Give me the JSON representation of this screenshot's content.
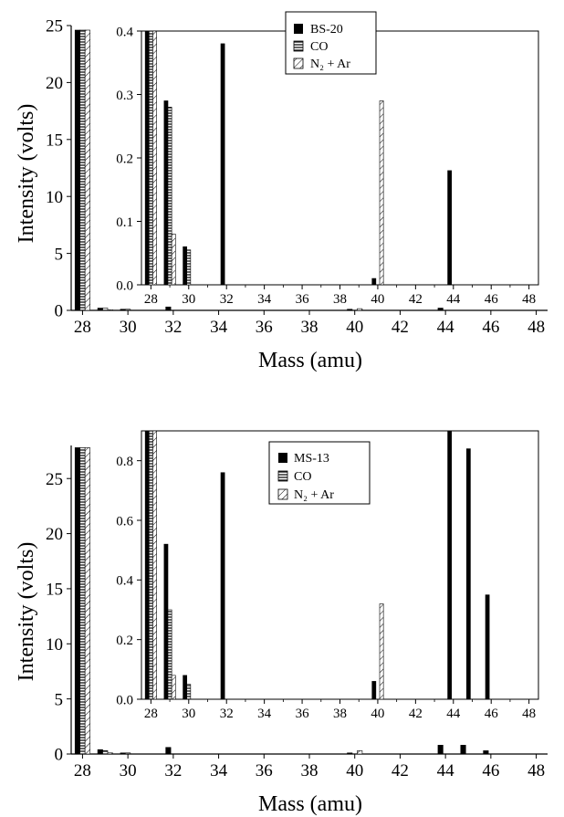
{
  "chart_data": [
    {
      "type": "bar",
      "xlabel": "Mass (amu)",
      "ylabel": "Intensity (volts)",
      "xlim": [
        27.5,
        48.5
      ],
      "ylim": [
        0,
        25
      ],
      "yticks": [
        0,
        5,
        10,
        15,
        20,
        25
      ],
      "xticks": [
        28,
        30,
        32,
        34,
        36,
        38,
        40,
        42,
        44,
        46,
        48
      ],
      "series": [
        {
          "name": "BS-20",
          "pattern": "solid",
          "x": [
            28,
            29,
            30,
            32,
            40,
            44
          ],
          "values": [
            24.6,
            0.2,
            0.1,
            0.3,
            0.1,
            0.2
          ]
        },
        {
          "name": "CO",
          "pattern": "horizontal-lines",
          "x": [
            28,
            29,
            30
          ],
          "values": [
            24.6,
            0.2,
            0.1
          ]
        },
        {
          "name": "N2 + Ar",
          "pattern": "diagonal-hatch",
          "x": [
            28,
            29,
            40
          ],
          "values": [
            24.6,
            0.05,
            0.15
          ]
        }
      ],
      "inset": {
        "xlim": [
          27.5,
          48.5
        ],
        "ylim": [
          0,
          0.4
        ],
        "yticks": [
          "0.0",
          "0.1",
          "0.2",
          "0.3",
          "0.4"
        ],
        "xticks": [
          28,
          30,
          32,
          34,
          36,
          38,
          40,
          42,
          44,
          46,
          48
        ],
        "legend": {
          "position": "top-center",
          "entries": [
            "BS-20",
            "CO",
            "N₂ + Ar"
          ]
        },
        "series": [
          {
            "name": "BS-20",
            "pattern": "solid",
            "x": [
              28,
              29,
              30,
              32,
              40,
              44
            ],
            "values": [
              0.4,
              0.29,
              0.06,
              0.38,
              0.01,
              0.18
            ]
          },
          {
            "name": "CO",
            "pattern": "horizontal-lines",
            "x": [
              28,
              29,
              30
            ],
            "values": [
              0.4,
              0.28,
              0.055
            ]
          },
          {
            "name": "N2 + Ar",
            "pattern": "diagonal-hatch",
            "x": [
              28,
              29,
              40
            ],
            "values": [
              0.4,
              0.08,
              0.29
            ]
          }
        ]
      }
    },
    {
      "type": "bar",
      "xlabel": "Mass (amu)",
      "ylabel": "Intensity (volts)",
      "xlim": [
        27.5,
        48.5
      ],
      "ylim": [
        0,
        28
      ],
      "yticks": [
        0,
        5,
        10,
        15,
        20,
        25
      ],
      "xticks": [
        28,
        30,
        32,
        34,
        36,
        38,
        40,
        42,
        44,
        46,
        48
      ],
      "series": [
        {
          "name": "MS-13",
          "pattern": "solid",
          "x": [
            28,
            29,
            30,
            32,
            40,
            44,
            45,
            46
          ],
          "values": [
            27.8,
            0.4,
            0.1,
            0.6,
            0.1,
            0.8,
            0.8,
            0.3
          ]
        },
        {
          "name": "CO",
          "pattern": "horizontal-lines",
          "x": [
            28,
            29,
            30
          ],
          "values": [
            27.8,
            0.3,
            0.1
          ]
        },
        {
          "name": "N2 + Ar",
          "pattern": "diagonal-hatch",
          "x": [
            28,
            29,
            40
          ],
          "values": [
            27.8,
            0.1,
            0.3
          ]
        }
      ],
      "inset": {
        "xlim": [
          27.5,
          48.5
        ],
        "ylim": [
          0,
          0.9
        ],
        "yticks": [
          "0.0",
          "0.2",
          "0.4",
          "0.6",
          "0.8"
        ],
        "xticks": [
          28,
          30,
          32,
          34,
          36,
          38,
          40,
          42,
          44,
          46,
          48
        ],
        "legend": {
          "position": "top-center",
          "entries": [
            "MS-13",
            "CO",
            "N₂ + Ar"
          ]
        },
        "series": [
          {
            "name": "MS-13",
            "pattern": "solid",
            "x": [
              28,
              29,
              30,
              32,
              40,
              44,
              45,
              46
            ],
            "values": [
              0.9,
              0.52,
              0.08,
              0.76,
              0.06,
              0.9,
              0.84,
              0.35
            ]
          },
          {
            "name": "CO",
            "pattern": "horizontal-lines",
            "x": [
              28,
              29,
              30
            ],
            "values": [
              0.9,
              0.3,
              0.05
            ]
          },
          {
            "name": "N2 + Ar",
            "pattern": "diagonal-hatch",
            "x": [
              28,
              29,
              40
            ],
            "values": [
              0.9,
              0.08,
              0.32
            ]
          }
        ]
      }
    }
  ]
}
